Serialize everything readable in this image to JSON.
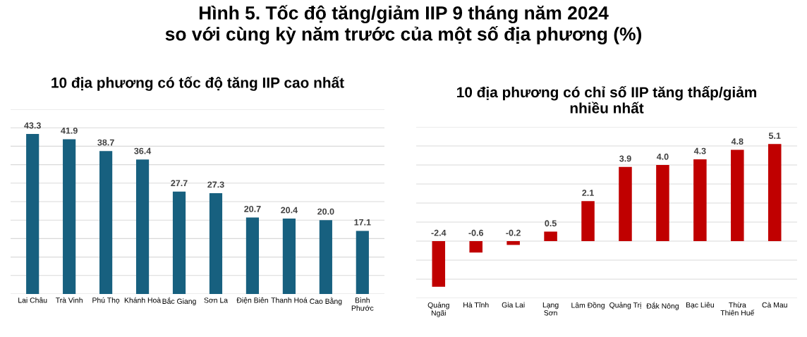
{
  "chart_data": [
    {
      "type": "bar",
      "title": "Hình 5. Tốc độ tăng/giảm IIP 9 tháng năm 2024\nso với cùng kỳ năm trước của một số địa phương (%)",
      "subtitle": "10 địa phương có tốc độ tăng IIP cao nhất",
      "categories": [
        "Lai Châu",
        "Trà Vinh",
        "Phú Thọ",
        "Khánh Hoà",
        "Bắc Giang",
        "Sơn La",
        "Điện Biên",
        "Thanh Hoá",
        "Cao Bằng",
        "Bình\nPhước"
      ],
      "values": [
        43.3,
        41.9,
        38.7,
        36.4,
        27.7,
        27.3,
        20.7,
        20.4,
        20.0,
        17.1
      ],
      "color": "#17607f",
      "data_labels": true,
      "value_labels": [
        "43.3",
        "41.9",
        "38.7",
        "36.4",
        "27.7",
        "27.3",
        "20.7",
        "20.4",
        "20.0",
        "17.1"
      ],
      "ylim": [
        0,
        50
      ],
      "yticks": [
        {
          "value": 0,
          "label": null
        },
        {
          "value": 5,
          "label": null
        },
        {
          "value": 10,
          "label": null
        },
        {
          "value": 15,
          "label": null
        },
        {
          "value": 20,
          "label": null
        },
        {
          "value": 25,
          "label": null
        },
        {
          "value": 30,
          "label": null
        },
        {
          "value": 35,
          "label": null
        },
        {
          "value": 40,
          "label": null
        },
        {
          "value": 45,
          "label": null
        },
        {
          "value": 50,
          "label": null
        }
      ],
      "grid": "y",
      "tick_labels": "x"
    },
    {
      "type": "bar",
      "subtitle": "10 địa phương có chỉ số IIP tăng thấp/giảm\nnhiều nhất",
      "categories": [
        "Quảng\nNgãi",
        "Hà Tĩnh",
        "Gia Lai",
        "Lạng\nSơn",
        "Lâm Đồng",
        "Quảng Trị",
        "Đắk Nông",
        "Bạc Liêu",
        "Thừa\nThiên Huế",
        "Cà Mau"
      ],
      "values": [
        -2.4,
        -0.6,
        -0.2,
        0.5,
        2.1,
        3.9,
        4.0,
        4.3,
        4.8,
        5.1
      ],
      "color": "#c00000",
      "data_labels": true,
      "value_labels": [
        "-2.4",
        "-0.6",
        "-0.2",
        "0.5",
        "2.1",
        "3.9",
        "4.0",
        "4.3",
        "4.8",
        "5.1"
      ],
      "ylim": [
        -3,
        6
      ],
      "yticks": [
        {
          "value": -3,
          "label": null
        },
        {
          "value": -2,
          "label": null
        },
        {
          "value": -1,
          "label": null
        },
        {
          "value": 0,
          "label": null
        },
        {
          "value": 1,
          "label": null
        },
        {
          "value": 2,
          "label": null
        },
        {
          "value": 3,
          "label": null
        },
        {
          "value": 4,
          "label": null
        },
        {
          "value": 5,
          "label": null
        },
        {
          "value": 6,
          "label": null
        }
      ],
      "grid": "y",
      "tick_labels": "x"
    }
  ]
}
